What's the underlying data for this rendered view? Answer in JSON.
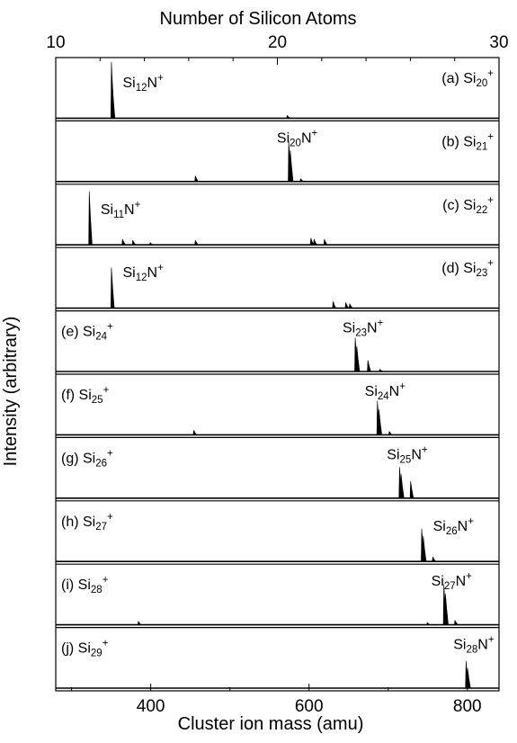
{
  "chart_data": {
    "type": "line",
    "top_axis": {
      "label": "Number of Silicon Atoms",
      "ticks": [
        10,
        20,
        30
      ],
      "minor_ticks": [
        12,
        14,
        16,
        18,
        22,
        24,
        26,
        28
      ]
    },
    "xlabel": "Cluster ion mass (amu)",
    "ylabel": "Intensity (arbitrary)",
    "xlim": [
      280,
      840
    ],
    "xticks": [
      400,
      600,
      800
    ],
    "xminor_ticks": [
      300,
      500,
      700
    ],
    "grid": false,
    "panels": [
      {
        "letter": "(a) Si",
        "num": "20",
        "charge": "+",
        "label_side": "right",
        "peak": {
          "el": "Si",
          "num": "12",
          "rest": "N",
          "charge": "+",
          "mass": 351,
          "side": "right"
        },
        "peaks": [
          [
            351,
            1.0
          ],
          [
            351.8,
            0.7
          ],
          [
            573,
            0.05
          ]
        ]
      },
      {
        "letter": "(b) Si",
        "num": "21",
        "charge": "+",
        "label_side": "right",
        "peak": {
          "el": "Si",
          "num": "20",
          "rest": "N",
          "charge": "+",
          "mass": 576,
          "side": "center"
        },
        "peaks": [
          [
            457,
            0.1
          ],
          [
            575,
            0.72
          ],
          [
            577,
            0.55
          ],
          [
            590,
            0.05
          ]
        ]
      },
      {
        "letter": "(c) Si",
        "num": "22",
        "charge": "+",
        "label_side": "right",
        "peak": {
          "el": "Si",
          "num": "11",
          "rest": "N",
          "charge": "+",
          "mass": 323,
          "side": "right"
        },
        "peaks": [
          [
            323,
            0.95
          ],
          [
            365,
            0.1
          ],
          [
            378,
            0.08
          ],
          [
            400,
            0.04
          ],
          [
            457,
            0.08
          ],
          [
            603,
            0.12
          ],
          [
            607,
            0.1
          ],
          [
            620,
            0.1
          ]
        ]
      },
      {
        "letter": "(d) Si",
        "num": "23",
        "charge": "+",
        "label_side": "right",
        "peak": {
          "el": "Si",
          "num": "12",
          "rest": "N",
          "charge": "+",
          "mass": 351,
          "side": "right"
        },
        "peaks": [
          [
            351,
            0.72
          ],
          [
            631,
            0.12
          ],
          [
            647,
            0.1
          ],
          [
            652,
            0.08
          ]
        ]
      },
      {
        "letter": "(e) Si",
        "num": "24",
        "charge": "+",
        "label_side": "left",
        "peak": {
          "el": "Si",
          "num": "23",
          "rest": "N",
          "charge": "+",
          "mass": 659,
          "side": "center"
        },
        "peaks": [
          [
            659,
            0.6
          ],
          [
            661,
            0.45
          ],
          [
            675,
            0.2
          ],
          [
            690,
            0.04
          ]
        ]
      },
      {
        "letter": "(f) Si",
        "num": "25",
        "charge": "+",
        "label_side": "left",
        "peak": {
          "el": "Si",
          "num": "24",
          "rest": "N",
          "charge": "+",
          "mass": 687,
          "side": "center"
        },
        "peaks": [
          [
            455,
            0.08
          ],
          [
            687,
            0.6
          ],
          [
            689,
            0.45
          ],
          [
            702,
            0.06
          ]
        ]
      },
      {
        "letter": "(g) Si",
        "num": "26",
        "charge": "+",
        "label_side": "left",
        "peak": {
          "el": "Si",
          "num": "25",
          "rest": "N",
          "charge": "+",
          "mass": 715,
          "side": "center"
        },
        "peaks": [
          [
            715,
            0.55
          ],
          [
            717,
            0.42
          ],
          [
            729,
            0.3
          ]
        ]
      },
      {
        "letter": "(h) Si",
        "num": "27",
        "charge": "+",
        "label_side": "left",
        "peak": {
          "el": "Si",
          "num": "26",
          "rest": "N",
          "charge": "+",
          "mass": 743,
          "side": "right"
        },
        "peaks": [
          [
            743,
            0.58
          ],
          [
            745,
            0.45
          ],
          [
            757,
            0.08
          ]
        ]
      },
      {
        "letter": "(i) Si",
        "num": "28",
        "charge": "+",
        "label_side": "left",
        "peak": {
          "el": "Si",
          "num": "27",
          "rest": "N",
          "charge": "+",
          "mass": 771,
          "side": "center"
        },
        "peaks": [
          [
            385,
            0.06
          ],
          [
            750,
            0.04
          ],
          [
            771,
            0.72
          ],
          [
            773,
            0.55
          ],
          [
            785,
            0.08
          ]
        ]
      },
      {
        "letter": "(j) Si",
        "num": "29",
        "charge": "+",
        "label_side": "left",
        "peak": {
          "el": "Si",
          "num": "28",
          "rest": "N",
          "charge": "+",
          "mass": 799,
          "side": "center"
        },
        "peaks": [
          [
            799,
            0.48
          ],
          [
            801,
            0.35
          ]
        ]
      }
    ]
  }
}
